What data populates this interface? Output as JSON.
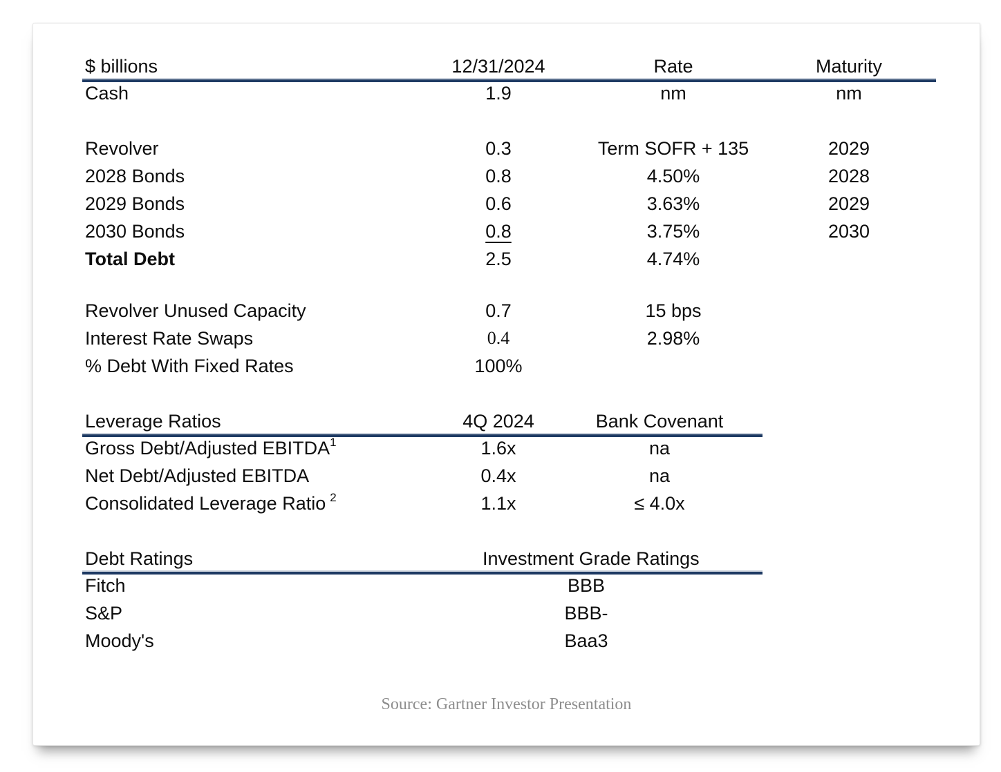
{
  "debt_table": {
    "headers": {
      "label": "$ billions",
      "amount": "12/31/2024",
      "rate": "Rate",
      "maturity": "Maturity"
    },
    "rows": [
      {
        "label": "Cash",
        "amount": "1.9",
        "rate": "nm",
        "maturity": "nm"
      },
      {
        "label": "Revolver",
        "amount": "0.3",
        "rate": "Term SOFR + 135",
        "maturity": "2029"
      },
      {
        "label": "2028 Bonds",
        "amount": "0.8",
        "rate": "4.50%",
        "maturity": "2028"
      },
      {
        "label": "2029 Bonds",
        "amount": "0.6",
        "rate": "3.63%",
        "maturity": "2029"
      },
      {
        "label": "2030 Bonds",
        "amount": "0.8",
        "rate": "3.75%",
        "maturity": "2030"
      },
      {
        "label": "Total Debt",
        "amount": "2.5",
        "rate": "4.74%",
        "maturity": ""
      }
    ]
  },
  "supplemental": {
    "rows": [
      {
        "label": "Revolver Unused Capacity",
        "amount": "0.7",
        "rate": "15 bps"
      },
      {
        "label": "Interest Rate Swaps",
        "amount": "0.4",
        "rate": "2.98%"
      },
      {
        "label": "% Debt With Fixed Rates",
        "amount": "100%",
        "rate": ""
      }
    ]
  },
  "leverage": {
    "headers": {
      "label": "Leverage Ratios",
      "period": "4Q 2024",
      "covenant": "Bank Covenant"
    },
    "rows": [
      {
        "label": "Gross Debt/Adjusted EBITDA",
        "sup": "1",
        "value": "1.6x",
        "covenant": "na"
      },
      {
        "label": "Net Debt/Adjusted EBITDA",
        "sup": "",
        "value": "0.4x",
        "covenant": "na"
      },
      {
        "label": "Consolidated Leverage Ratio",
        "sup": "2",
        "value": "1.1x",
        "covenant": "≤ 4.0x"
      }
    ]
  },
  "ratings": {
    "headers": {
      "label": "Debt Ratings",
      "value": "Investment Grade Ratings"
    },
    "rows": [
      {
        "label": "Fitch",
        "value": "BBB"
      },
      {
        "label": "S&P",
        "value": "BBB-"
      },
      {
        "label": "Moody's",
        "value": "Baa3"
      }
    ]
  },
  "source": "Source: Gartner Investor Presentation",
  "colors": {
    "rule": "#1e3a63",
    "text": "#0e0e0e",
    "source_text": "#8d8d8d"
  }
}
